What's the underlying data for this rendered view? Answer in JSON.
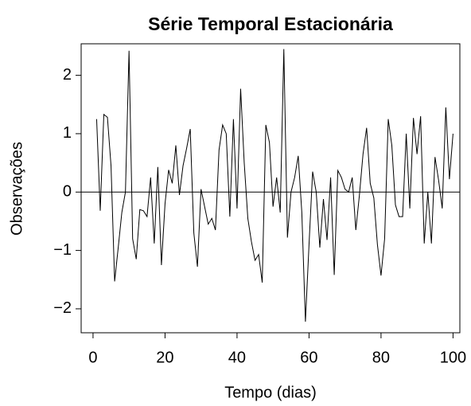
{
  "chart_data": {
    "type": "line",
    "title": "Série Temporal Estacionária",
    "x_label": "Tempo (dias)",
    "y_label": "Observações",
    "x": [
      1,
      2,
      3,
      4,
      5,
      6,
      7,
      8,
      9,
      10,
      11,
      12,
      13,
      14,
      15,
      16,
      17,
      18,
      19,
      20,
      21,
      22,
      23,
      24,
      25,
      26,
      27,
      28,
      29,
      30,
      31,
      32,
      33,
      34,
      35,
      36,
      37,
      38,
      39,
      40,
      41,
      42,
      43,
      44,
      45,
      46,
      47,
      48,
      49,
      50,
      51,
      52,
      53,
      54,
      55,
      56,
      57,
      58,
      59,
      60,
      61,
      62,
      63,
      64,
      65,
      66,
      67,
      68,
      69,
      70,
      71,
      72,
      73,
      74,
      75,
      76,
      77,
      78,
      79,
      80,
      81,
      82,
      83,
      84,
      85,
      86,
      87,
      88,
      89,
      90,
      91,
      92,
      93,
      94,
      95,
      96,
      97,
      98,
      99,
      100
    ],
    "series": [
      {
        "name": "Observações",
        "color": "#000000",
        "values": [
          1.25,
          -0.32,
          1.33,
          1.28,
          0.45,
          -1.53,
          -0.95,
          -0.35,
          0.0,
          2.42,
          -0.8,
          -1.15,
          -0.3,
          -0.32,
          -0.42,
          0.25,
          -0.88,
          0.43,
          -1.25,
          -0.2,
          0.38,
          0.15,
          0.8,
          -0.05,
          0.45,
          0.75,
          1.08,
          -0.7,
          -1.28,
          0.05,
          -0.25,
          -0.55,
          -0.45,
          -0.65,
          0.72,
          1.15,
          1.0,
          -0.42,
          1.25,
          -0.28,
          1.77,
          0.5,
          -0.45,
          -0.85,
          -1.17,
          -1.07,
          -1.55,
          1.15,
          0.85,
          -0.25,
          0.25,
          -0.35,
          2.45,
          -0.78,
          0.0,
          0.25,
          0.62,
          -0.35,
          -2.22,
          -0.9,
          0.35,
          0.0,
          -0.95,
          -0.12,
          -0.82,
          0.25,
          -1.42,
          0.37,
          0.25,
          0.05,
          0.0,
          0.25,
          -0.65,
          -0.05,
          0.65,
          1.1,
          0.15,
          -0.1,
          -0.9,
          -1.43,
          -0.8,
          1.25,
          0.8,
          -0.22,
          -0.42,
          -0.42,
          1.0,
          -0.28,
          1.27,
          0.65,
          1.3,
          -0.88,
          0.0,
          -0.88,
          0.6,
          0.2,
          -0.28,
          1.45,
          0.22,
          1.0
        ]
      }
    ],
    "xlim": [
      -3.3,
      101.9
    ],
    "ylim": [
      -2.41,
      2.54
    ],
    "xticks": [
      0,
      20,
      40,
      60,
      80,
      100
    ],
    "yticks": [
      {
        "value": -2,
        "label": "−2"
      },
      {
        "value": -1,
        "label": "−1"
      },
      0,
      1,
      2
    ],
    "hline": 0
  }
}
